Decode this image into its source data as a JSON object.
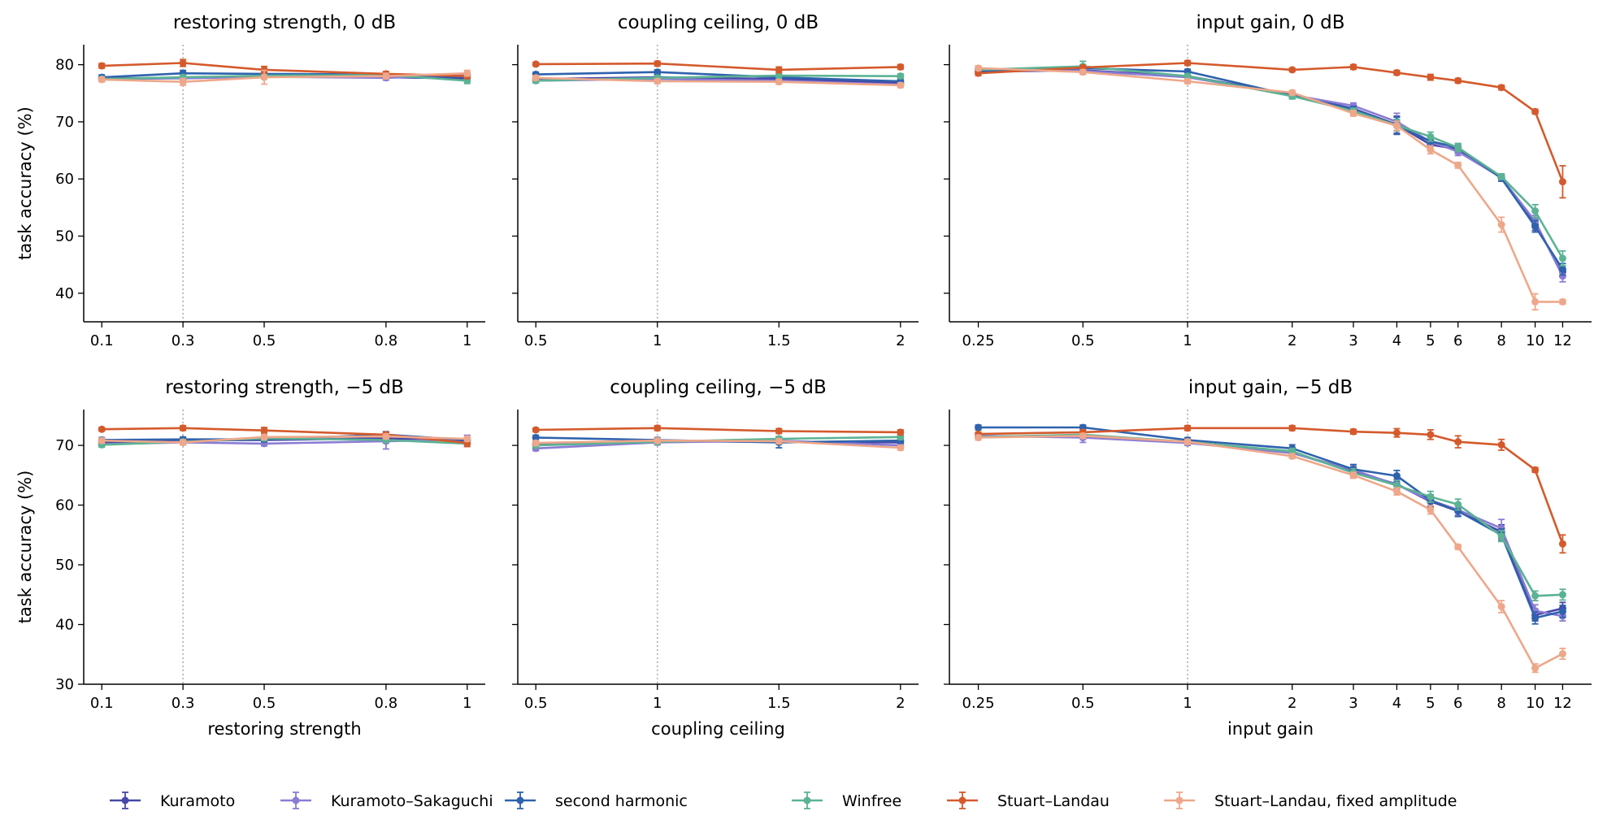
{
  "figure": {
    "legend_position": "bottom",
    "series_meta": [
      {
        "name": "Kuramoto",
        "color": "#4748a8"
      },
      {
        "name": "Kuramoto–Sakaguchi",
        "color": "#8a7cd4"
      },
      {
        "name": "second harmonic",
        "color": "#2f62ad"
      },
      {
        "name": "Winfree",
        "color": "#5bb394"
      },
      {
        "name": "Stuart–Landau",
        "color": "#d45a2c"
      },
      {
        "name": "Stuart–Landau, fixed amplitude",
        "color": "#eea78a"
      }
    ],
    "ylabel_shared": "task accuracy (%)"
  },
  "chart_data": [
    {
      "type": "line",
      "title": "restoring strength, 0 dB",
      "xlabel": "",
      "ylabel": "task accuracy (%)",
      "x": [
        0.1,
        0.3,
        0.5,
        0.8,
        1
      ],
      "x_tick_labels": [
        "0.1",
        "0.3",
        "0.5",
        "0.8",
        "1"
      ],
      "y_ticks": [
        40,
        50,
        60,
        70,
        80
      ],
      "ylim": [
        35,
        83.5
      ],
      "reference_x": 0.3,
      "series": [
        {
          "name": "Kuramoto",
          "values": [
            77.6,
            77.7,
            78.0,
            77.8,
            77.6
          ],
          "err": [
            0.4,
            0.4,
            0.4,
            0.4,
            0.4
          ]
        },
        {
          "name": "Kuramoto–Sakaguchi",
          "values": [
            77.5,
            77.6,
            77.9,
            77.7,
            78.2
          ],
          "err": [
            0.4,
            0.4,
            0.4,
            0.4,
            0.4
          ]
        },
        {
          "name": "second harmonic",
          "values": [
            77.8,
            78.5,
            78.4,
            78.3,
            77.9
          ],
          "err": [
            0.4,
            0.5,
            0.4,
            0.4,
            0.4
          ]
        },
        {
          "name": "Winfree",
          "values": [
            77.5,
            77.8,
            78.1,
            78.2,
            77.2
          ],
          "err": [
            0.4,
            0.4,
            0.4,
            0.4,
            0.5
          ]
        },
        {
          "name": "Stuart–Landau",
          "values": [
            79.8,
            80.3,
            79.1,
            78.4,
            78.0
          ],
          "err": [
            0.4,
            0.6,
            0.6,
            0.4,
            0.4
          ]
        },
        {
          "name": "Stuart–Landau, fixed amplitude",
          "values": [
            77.4,
            77.0,
            77.8,
            78.0,
            78.5
          ],
          "err": [
            0.4,
            0.6,
            1.2,
            0.5,
            0.5
          ]
        }
      ]
    },
    {
      "type": "line",
      "title": "coupling ceiling, 0 dB",
      "xlabel": "",
      "ylabel": "",
      "x": [
        0.5,
        1,
        1.5,
        2
      ],
      "x_tick_labels": [
        "0.5",
        "1",
        "1.5",
        "2"
      ],
      "y_ticks": [
        40,
        50,
        60,
        70,
        80
      ],
      "ylim": [
        35,
        83.5
      ],
      "reference_x": 1,
      "series": [
        {
          "name": "Kuramoto",
          "values": [
            77.5,
            77.8,
            77.5,
            76.8
          ],
          "err": [
            0.4,
            0.4,
            0.4,
            0.4
          ]
        },
        {
          "name": "Kuramoto–Sakaguchi",
          "values": [
            77.2,
            77.5,
            77.2,
            76.5
          ],
          "err": [
            0.4,
            0.4,
            0.4,
            0.4
          ]
        },
        {
          "name": "second harmonic",
          "values": [
            78.3,
            78.7,
            77.8,
            77.1
          ],
          "err": [
            0.4,
            0.4,
            0.4,
            0.4
          ]
        },
        {
          "name": "Winfree",
          "values": [
            77.2,
            77.7,
            78.1,
            78.0
          ],
          "err": [
            0.4,
            0.4,
            0.4,
            0.4
          ]
        },
        {
          "name": "Stuart–Landau",
          "values": [
            80.1,
            80.2,
            79.1,
            79.6
          ],
          "err": [
            0.3,
            0.4,
            0.5,
            0.4
          ]
        },
        {
          "name": "Stuart–Landau, fixed amplitude",
          "values": [
            77.7,
            77.1,
            77.0,
            76.4
          ],
          "err": [
            0.4,
            0.4,
            0.4,
            0.4
          ]
        }
      ]
    },
    {
      "type": "line",
      "title": "input gain, 0 dB",
      "xlabel": "",
      "ylabel": "",
      "xscale": "log",
      "x": [
        0.25,
        0.5,
        1,
        2,
        3,
        4,
        5,
        6,
        8,
        10,
        12
      ],
      "x_tick_labels": [
        "0.25",
        "0.5",
        "1",
        "2",
        "3",
        "4",
        "5",
        "6",
        "8",
        "10",
        "12"
      ],
      "y_ticks": [
        40,
        50,
        60,
        70,
        80
      ],
      "ylim": [
        35,
        83.5
      ],
      "reference_x": 1,
      "series": [
        {
          "name": "Kuramoto",
          "values": [
            78.8,
            79.0,
            78.0,
            74.8,
            72.3,
            69.5,
            66.0,
            65.2,
            60.3,
            52.0,
            43.8
          ],
          "err": [
            0.4,
            0.5,
            0.4,
            0.5,
            0.5,
            1.5,
            0.8,
            0.7,
            0.5,
            1.0,
            1.0
          ]
        },
        {
          "name": "Kuramoto–Sakaguchi",
          "values": [
            79.2,
            78.9,
            77.8,
            74.7,
            72.8,
            70.0,
            66.5,
            64.8,
            60.2,
            52.6,
            43.0
          ],
          "err": [
            0.4,
            0.5,
            0.4,
            0.5,
            0.5,
            1.5,
            0.8,
            0.7,
            0.5,
            1.0,
            1.0
          ]
        },
        {
          "name": "second harmonic",
          "values": [
            79.0,
            79.4,
            78.8,
            74.6,
            72.2,
            69.3,
            66.6,
            65.5,
            60.1,
            51.7,
            44.2
          ],
          "err": [
            0.4,
            0.5,
            0.4,
            0.5,
            0.5,
            1.5,
            0.8,
            0.7,
            0.5,
            1.0,
            1.0
          ]
        },
        {
          "name": "Winfree",
          "values": [
            79.1,
            79.7,
            78.0,
            74.5,
            71.9,
            69.4,
            67.4,
            65.5,
            60.4,
            54.4,
            46.1
          ],
          "err": [
            0.4,
            0.9,
            0.4,
            0.5,
            0.5,
            1.0,
            0.8,
            0.7,
            0.5,
            1.1,
            1.3
          ]
        },
        {
          "name": "Stuart–Landau",
          "values": [
            78.5,
            79.5,
            80.3,
            79.1,
            79.6,
            78.6,
            77.8,
            77.2,
            76.0,
            71.8,
            59.5
          ],
          "err": [
            0.4,
            0.4,
            0.4,
            0.3,
            0.4,
            0.4,
            0.5,
            0.4,
            0.4,
            0.4,
            2.8
          ]
        },
        {
          "name": "Stuart–Landau, fixed amplitude",
          "values": [
            79.4,
            78.7,
            77.1,
            75.1,
            71.5,
            69.3,
            65.1,
            62.4,
            52.0,
            38.5,
            38.5
          ],
          "err": [
            0.4,
            0.4,
            0.4,
            0.4,
            0.5,
            0.8,
            0.7,
            0.5,
            1.3,
            1.4,
            0.4
          ]
        }
      ]
    },
    {
      "type": "line",
      "title": "restoring strength, −5 dB",
      "xlabel": "restoring strength",
      "ylabel": "task accuracy (%)",
      "x": [
        0.1,
        0.3,
        0.5,
        0.8,
        1
      ],
      "x_tick_labels": [
        "0.1",
        "0.3",
        "0.5",
        "0.8",
        "1"
      ],
      "y_ticks": [
        30,
        40,
        50,
        60,
        70
      ],
      "ylim": [
        30,
        76
      ],
      "reference_x": 0.3,
      "series": [
        {
          "name": "Kuramoto",
          "values": [
            70.5,
            70.8,
            70.9,
            71.2,
            70.8
          ],
          "err": [
            0.4,
            0.4,
            0.4,
            0.8,
            0.4
          ]
        },
        {
          "name": "Kuramoto–Sakaguchi",
          "values": [
            70.2,
            70.5,
            70.3,
            70.7,
            71.0
          ],
          "err": [
            0.4,
            0.4,
            0.4,
            1.3,
            0.7
          ]
        },
        {
          "name": "second harmonic",
          "values": [
            70.9,
            71.0,
            71.0,
            71.8,
            70.9
          ],
          "err": [
            0.4,
            0.4,
            0.4,
            0.5,
            0.4
          ]
        },
        {
          "name": "Winfree",
          "values": [
            70.1,
            70.6,
            71.2,
            70.9,
            70.3
          ],
          "err": [
            0.4,
            0.4,
            0.4,
            0.4,
            0.4
          ]
        },
        {
          "name": "Stuart–Landau",
          "values": [
            72.7,
            72.9,
            72.5,
            71.8,
            70.4
          ],
          "err": [
            0.3,
            0.4,
            0.5,
            0.4,
            0.6
          ]
        },
        {
          "name": "Stuart–Landau, fixed amplitude",
          "values": [
            70.8,
            70.5,
            71.4,
            71.5,
            71.1
          ],
          "err": [
            0.4,
            0.4,
            0.4,
            0.4,
            0.4
          ]
        }
      ]
    },
    {
      "type": "line",
      "title": "coupling ceiling, −5 dB",
      "xlabel": "coupling ceiling",
      "ylabel": "",
      "x": [
        0.5,
        1,
        1.5,
        2
      ],
      "x_tick_labels": [
        "0.5",
        "1",
        "1.5",
        "2"
      ],
      "y_ticks": [
        30,
        40,
        50,
        60,
        70
      ],
      "ylim": [
        30,
        76
      ],
      "reference_x": 1,
      "series": [
        {
          "name": "Kuramoto",
          "values": [
            70.2,
            70.7,
            70.6,
            70.5
          ],
          "err": [
            0.4,
            0.4,
            0.4,
            0.4
          ]
        },
        {
          "name": "Kuramoto–Sakaguchi",
          "values": [
            69.5,
            70.5,
            70.8,
            70.0
          ],
          "err": [
            0.4,
            0.4,
            0.4,
            0.4
          ]
        },
        {
          "name": "second harmonic",
          "values": [
            71.3,
            70.9,
            70.5,
            70.8
          ],
          "err": [
            0.4,
            0.4,
            0.9,
            0.4
          ]
        },
        {
          "name": "Winfree",
          "values": [
            70.0,
            70.6,
            71.1,
            71.4
          ],
          "err": [
            0.4,
            0.4,
            0.4,
            0.4
          ]
        },
        {
          "name": "Stuart–Landau",
          "values": [
            72.6,
            72.9,
            72.4,
            72.2
          ],
          "err": [
            0.3,
            0.4,
            0.4,
            0.4
          ]
        },
        {
          "name": "Stuart–Landau, fixed amplitude",
          "values": [
            70.4,
            70.8,
            70.7,
            69.6
          ],
          "err": [
            0.4,
            0.4,
            0.4,
            0.4
          ]
        }
      ]
    },
    {
      "type": "line",
      "title": "input gain, −5 dB",
      "xlabel": "input gain",
      "ylabel": "",
      "xscale": "log",
      "x": [
        0.25,
        0.5,
        1,
        2,
        3,
        4,
        5,
        6,
        8,
        10,
        12
      ],
      "x_tick_labels": [
        "0.25",
        "0.5",
        "1",
        "2",
        "3",
        "4",
        "5",
        "6",
        "8",
        "10",
        "12"
      ],
      "y_ticks": [
        30,
        40,
        50,
        60,
        70
      ],
      "ylim": [
        30,
        76
      ],
      "reference_x": 1,
      "series": [
        {
          "name": "Kuramoto",
          "values": [
            71.5,
            71.5,
            70.5,
            68.8,
            65.6,
            63.5,
            60.6,
            59.0,
            55.5,
            41.6,
            42.7
          ],
          "err": [
            0.4,
            0.4,
            0.4,
            0.6,
            0.8,
            0.8,
            0.9,
            0.9,
            1.2,
            1.0,
            1.0
          ]
        },
        {
          "name": "Kuramoto–Sakaguchi",
          "values": [
            71.6,
            71.3,
            70.4,
            68.7,
            65.9,
            63.4,
            60.8,
            59.2,
            56.1,
            42.3,
            41.4
          ],
          "err": [
            0.4,
            0.8,
            0.4,
            0.6,
            0.8,
            0.8,
            0.9,
            0.9,
            1.5,
            1.0,
            0.8
          ]
        },
        {
          "name": "second harmonic",
          "values": [
            73.0,
            73.0,
            70.9,
            69.5,
            66.0,
            64.9,
            60.8,
            59.0,
            55.0,
            41.1,
            42.2
          ],
          "err": [
            0.4,
            0.4,
            0.4,
            0.6,
            0.8,
            0.9,
            0.9,
            0.9,
            1.0,
            1.0,
            1.0
          ]
        },
        {
          "name": "Winfree",
          "values": [
            71.4,
            71.8,
            70.6,
            69.0,
            65.4,
            63.3,
            61.4,
            60.1,
            54.8,
            44.8,
            45.0
          ],
          "err": [
            0.4,
            0.4,
            0.4,
            0.5,
            0.7,
            0.8,
            0.9,
            0.9,
            0.9,
            0.8,
            0.9
          ]
        },
        {
          "name": "Stuart–Landau",
          "values": [
            71.9,
            72.2,
            72.9,
            72.9,
            72.3,
            72.1,
            71.8,
            70.6,
            70.1,
            65.9,
            53.5
          ],
          "err": [
            0.3,
            0.4,
            0.4,
            0.4,
            0.4,
            0.7,
            0.8,
            1.0,
            0.9,
            0.4,
            1.5
          ]
        },
        {
          "name": "Stuart–Landau, fixed amplitude",
          "values": [
            71.3,
            71.6,
            70.6,
            68.2,
            65.0,
            62.3,
            59.2,
            53.0,
            43.0,
            32.7,
            35.1
          ],
          "err": [
            0.4,
            0.4,
            0.4,
            0.4,
            0.5,
            0.6,
            0.7,
            0.4,
            1.0,
            0.7,
            0.9
          ]
        }
      ]
    }
  ]
}
